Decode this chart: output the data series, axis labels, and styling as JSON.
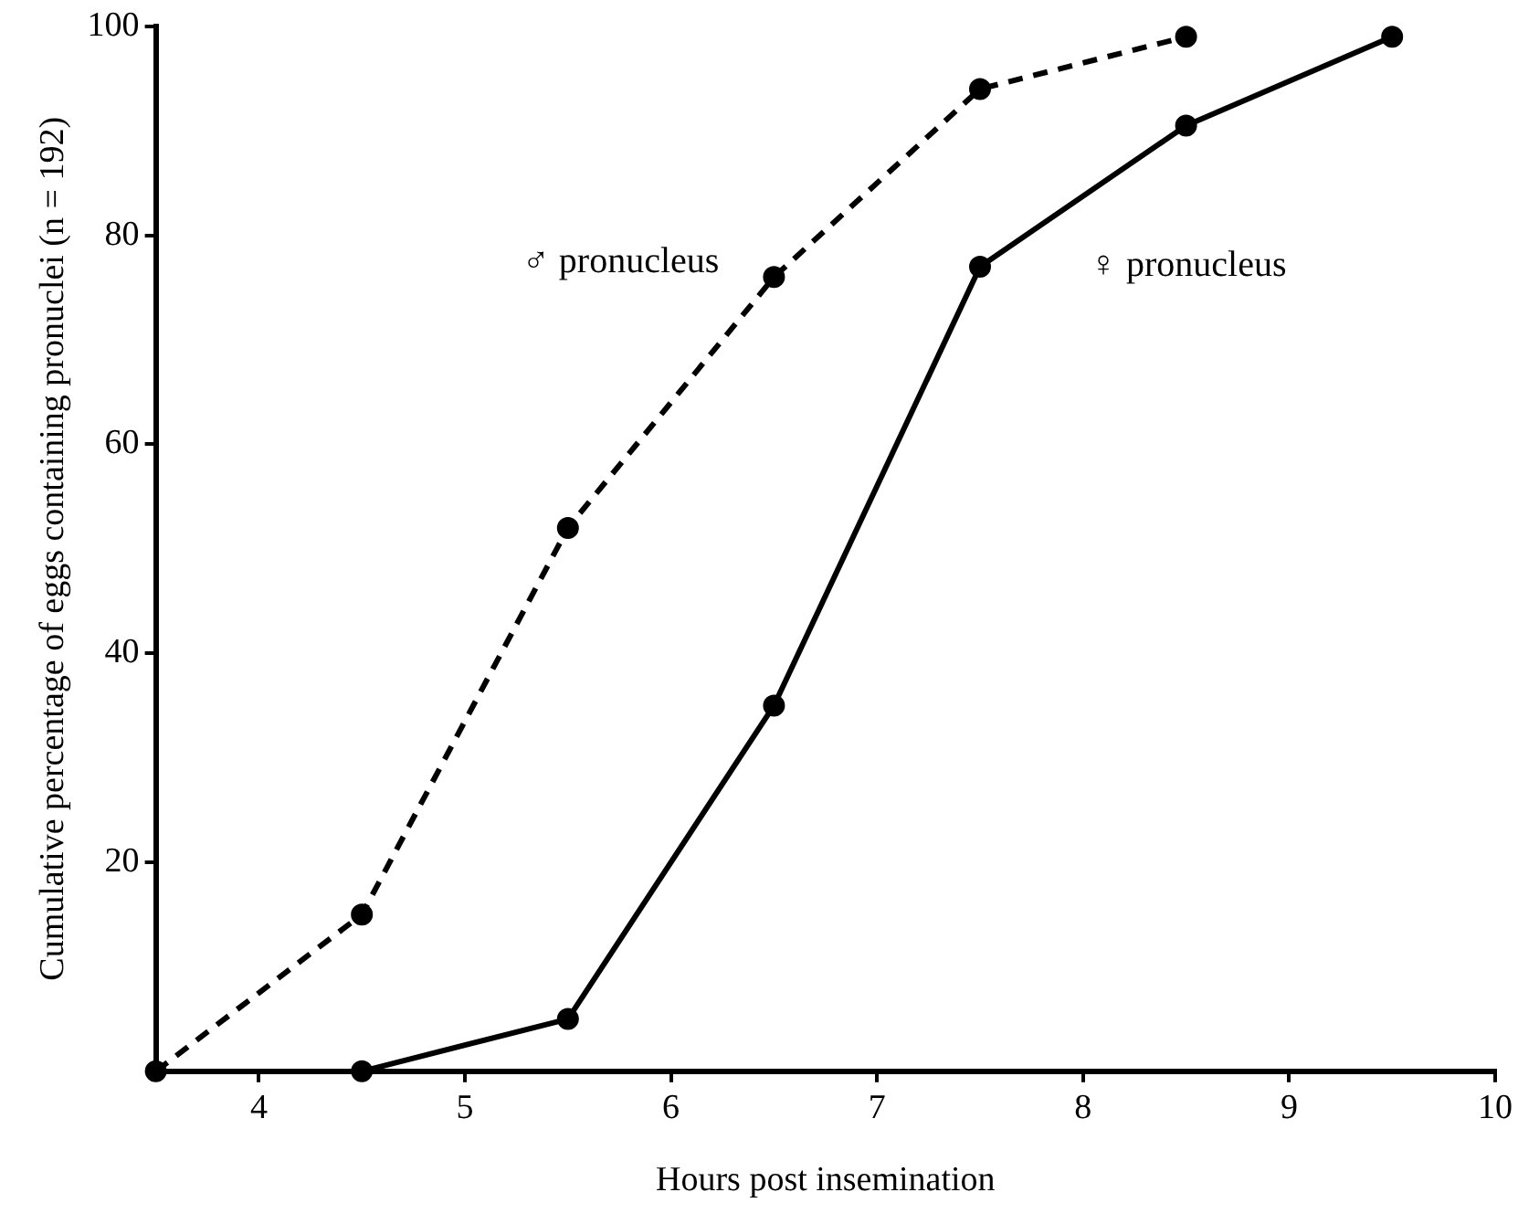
{
  "chart_data": {
    "type": "line",
    "xlabel": "Hours post insemination",
    "ylabel": "Cumulative percentage of eggs containing pronuclei (n = 192)",
    "xlim": [
      3.5,
      10
    ],
    "xticks": [
      4,
      5,
      6,
      7,
      8,
      9,
      10
    ],
    "ylim": [
      0,
      100
    ],
    "yticks": [
      20,
      40,
      60,
      80,
      100
    ],
    "grid": false,
    "legend": false,
    "marker": "circle",
    "series": [
      {
        "name": "♂ pronucleus",
        "color": "#000000",
        "line_style": "dashed",
        "x": [
          3.5,
          4.5,
          5.5,
          6.5,
          7.5,
          8.5
        ],
        "values": [
          0,
          15,
          52,
          76,
          94,
          99
        ]
      },
      {
        "name": "♀ pronucleus",
        "color": "#000000",
        "line_style": "solid",
        "x": [
          4.5,
          5.5,
          6.5,
          7.5,
          8.5,
          9.5
        ],
        "values": [
          0,
          5,
          35,
          77,
          90.5,
          99
        ]
      }
    ]
  }
}
